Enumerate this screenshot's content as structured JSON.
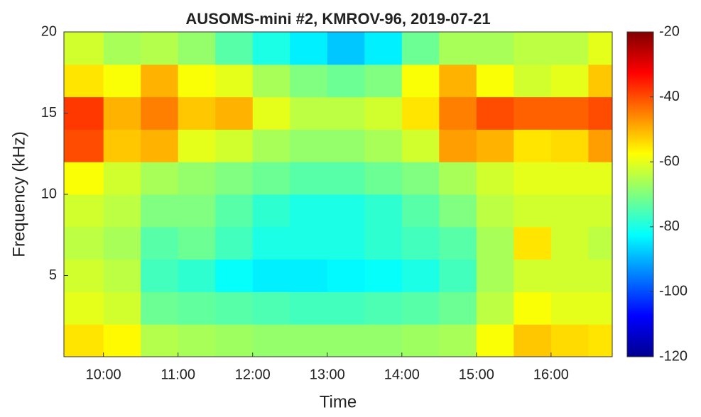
{
  "chart_data": {
    "type": "heatmap",
    "title": "AUSOMS-mini #2, KMROV-96, 2019-07-21",
    "xlabel": "Time",
    "ylabel": "Frequency (kHz)",
    "xbins": [
      9.47,
      10,
      10.5,
      11,
      11.5,
      12,
      12.5,
      13,
      13.5,
      14,
      14.5,
      15,
      15.5,
      16,
      16.5,
      16.82
    ],
    "ybins": [
      0,
      2,
      4,
      6,
      8,
      10,
      12,
      14,
      16,
      18,
      20
    ],
    "z": [
      [
        -55,
        -57,
        -65,
        -66,
        -67,
        -68,
        -68,
        -68,
        -68,
        -67,
        -66,
        -58,
        -52,
        -54,
        -55
      ],
      [
        -60,
        -62,
        -72,
        -73,
        -74,
        -75,
        -76,
        -76,
        -75,
        -74,
        -72,
        -64,
        -58,
        -60,
        -60
      ],
      [
        -62,
        -64,
        -76,
        -78,
        -82,
        -84,
        -84,
        -83,
        -82,
        -80,
        -76,
        -66,
        -62,
        -62,
        -62
      ],
      [
        -64,
        -66,
        -74,
        -72,
        -76,
        -80,
        -80,
        -80,
        -78,
        -76,
        -74,
        -66,
        -55,
        -62,
        -64
      ],
      [
        -62,
        -64,
        -70,
        -70,
        -74,
        -78,
        -80,
        -80,
        -78,
        -74,
        -70,
        -64,
        -62,
        -62,
        -62
      ],
      [
        -58,
        -62,
        -66,
        -68,
        -70,
        -72,
        -74,
        -74,
        -72,
        -70,
        -66,
        -62,
        -60,
        -60,
        -60
      ],
      [
        -40,
        -52,
        -50,
        -60,
        -62,
        -66,
        -68,
        -68,
        -66,
        -62,
        -48,
        -50,
        -55,
        -54,
        -48
      ],
      [
        -38,
        -50,
        -45,
        -52,
        -50,
        -60,
        -64,
        -64,
        -62,
        -55,
        -45,
        -40,
        -42,
        -42,
        -40
      ],
      [
        -55,
        -58,
        -50,
        -58,
        -60,
        -66,
        -70,
        -72,
        -70,
        -58,
        -50,
        -58,
        -62,
        -60,
        -52
      ],
      [
        -62,
        -66,
        -65,
        -68,
        -74,
        -80,
        -84,
        -88,
        -84,
        -72,
        -66,
        -66,
        -64,
        -64,
        -60
      ]
    ],
    "xlim": [
      9.47,
      16.82
    ],
    "xticks": [
      {
        "value": 10,
        "label": "10:00"
      },
      {
        "value": 11,
        "label": "11:00"
      },
      {
        "value": 12,
        "label": "12:00"
      },
      {
        "value": 13,
        "label": "13:00"
      },
      {
        "value": 14,
        "label": "14:00"
      },
      {
        "value": 15,
        "label": "15:00"
      },
      {
        "value": 16,
        "label": "16:00"
      }
    ],
    "ylim": [
      0,
      20
    ],
    "yticks": [
      5,
      10,
      15,
      20
    ],
    "colormap": "jet",
    "clim": [
      -120,
      -20
    ],
    "cticks": [
      -20,
      -40,
      -60,
      -80,
      -100,
      -120
    ]
  }
}
